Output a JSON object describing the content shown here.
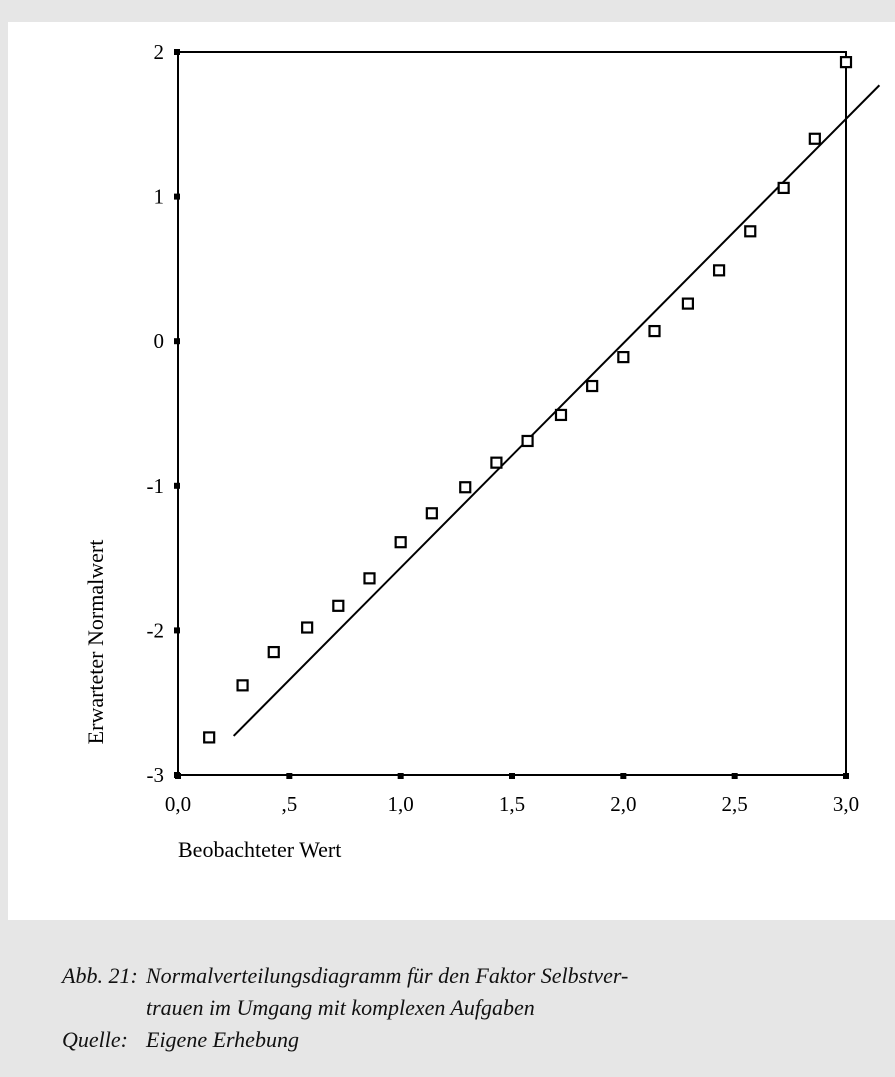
{
  "chart_data": {
    "type": "scatter",
    "title": "",
    "xlabel": "Beobachteter Wert",
    "ylabel": "Erwarteter Normalwert",
    "xlim": [
      0,
      3
    ],
    "ylim": [
      -3,
      2
    ],
    "x_ticks": [
      "0,0",
      ",5",
      "1,0",
      "1,5",
      "2,0",
      "2,5",
      "3,0"
    ],
    "y_ticks": [
      "2",
      "1",
      "0",
      "-1",
      "-2",
      "-3"
    ],
    "grid": false,
    "points": [
      {
        "x": 0.14,
        "y": -2.74
      },
      {
        "x": 0.29,
        "y": -2.38
      },
      {
        "x": 0.43,
        "y": -2.15
      },
      {
        "x": 0.58,
        "y": -1.98
      },
      {
        "x": 0.72,
        "y": -1.83
      },
      {
        "x": 0.86,
        "y": -1.64
      },
      {
        "x": 1.0,
        "y": -1.39
      },
      {
        "x": 1.14,
        "y": -1.19
      },
      {
        "x": 1.29,
        "y": -1.01
      },
      {
        "x": 1.43,
        "y": -0.84
      },
      {
        "x": 1.57,
        "y": -0.69
      },
      {
        "x": 1.72,
        "y": -0.51
      },
      {
        "x": 1.86,
        "y": -0.31
      },
      {
        "x": 2.0,
        "y": -0.11
      },
      {
        "x": 2.14,
        "y": 0.07
      },
      {
        "x": 2.29,
        "y": 0.26
      },
      {
        "x": 2.43,
        "y": 0.49
      },
      {
        "x": 2.57,
        "y": 0.76
      },
      {
        "x": 2.72,
        "y": 1.06
      },
      {
        "x": 2.86,
        "y": 1.4
      },
      {
        "x": 3.0,
        "y": 1.93
      }
    ],
    "reference_line": {
      "x": [
        0.25,
        3.15
      ],
      "y": [
        -2.73,
        1.77
      ]
    }
  },
  "caption": {
    "label": "Abb. 21:",
    "text": "Normalverteilungsdiagramm für den Faktor Selbstver-\ntrauen im Umgang mit komplexen Aufgaben",
    "source_label": "Quelle:",
    "source_text": "Eigene Erhebung"
  }
}
